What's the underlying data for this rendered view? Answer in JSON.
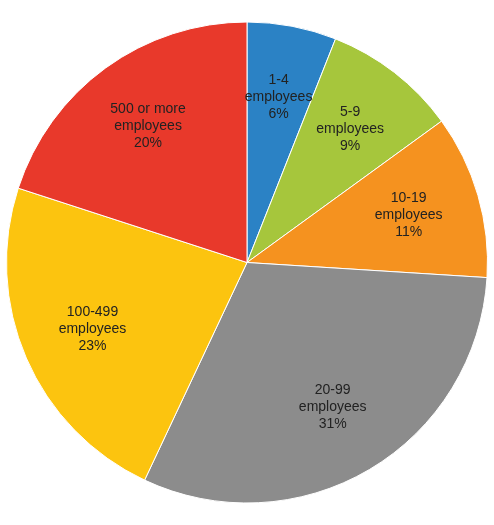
{
  "chart_data": {
    "type": "pie",
    "categories": [
      "1-4 employees",
      "5-9 employees",
      "10-19 employees",
      "20-99 employees",
      "100-499 employees",
      "500 or more employees"
    ],
    "values": [
      6,
      9,
      11,
      31,
      23,
      20
    ],
    "value_labels": [
      "6%",
      "9%",
      "11%",
      "31%",
      "23%",
      "20%"
    ],
    "colors": [
      "#2b82c5",
      "#a6c63c",
      "#f5921f",
      "#8c8c8c",
      "#fcc40f",
      "#e8392b"
    ],
    "data_labels": true
  }
}
